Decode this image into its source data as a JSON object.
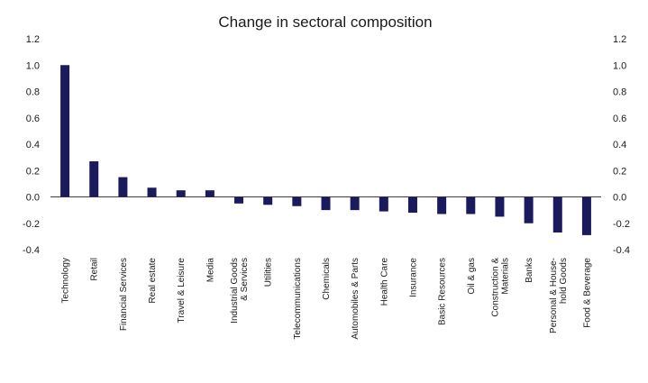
{
  "chart_data": {
    "type": "bar",
    "title": "Change in sectoral composition",
    "xlabel": "",
    "ylabel": "",
    "ylim": [
      -0.4,
      1.2
    ],
    "yticks": [
      "1.2",
      "1.0",
      "0.8",
      "0.6",
      "0.4",
      "0.2",
      "0.0",
      "-0.2",
      "-0.4"
    ],
    "ytick_values": [
      1.2,
      1.0,
      0.8,
      0.6,
      0.4,
      0.2,
      0.0,
      -0.2,
      -0.4
    ],
    "yticks_right": [
      "1.2",
      "1.0",
      "0.8",
      "0.6",
      "0.4",
      "0.2",
      "0.0",
      "-0.2",
      "-0.4"
    ],
    "grid": false,
    "bar_color": "#1b1a5c",
    "categories": [
      [
        "Technology"
      ],
      [
        "Retail"
      ],
      [
        "Financial Services"
      ],
      [
        "Real estate"
      ],
      [
        "Travel & Leisure"
      ],
      [
        "Media"
      ],
      [
        "Industrial Goods",
        "& Services"
      ],
      [
        "Utilities"
      ],
      [
        "Telecommunications"
      ],
      [
        "Chemicals"
      ],
      [
        "Automobiles & Parts"
      ],
      [
        "Health Care"
      ],
      [
        "Insurance"
      ],
      [
        "Basic Resources"
      ],
      [
        "Oil & gas"
      ],
      [
        "Construction &",
        "Materials"
      ],
      [
        "Banks"
      ],
      [
        "Personal & House-",
        "hold Goods"
      ],
      [
        "Food & Beverage"
      ]
    ],
    "values": [
      1.0,
      0.27,
      0.15,
      0.07,
      0.05,
      0.05,
      -0.05,
      -0.06,
      -0.07,
      -0.1,
      -0.1,
      -0.11,
      -0.12,
      -0.13,
      -0.13,
      -0.15,
      -0.2,
      -0.27,
      -0.29
    ]
  }
}
